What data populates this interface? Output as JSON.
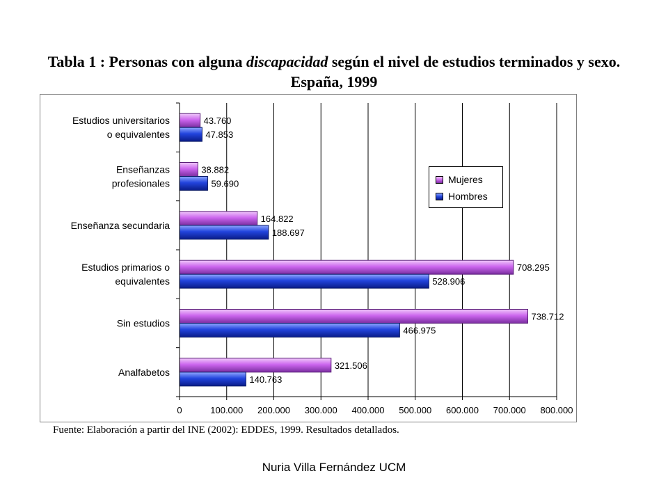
{
  "title": {
    "part1": "Tabla 1 : Personas con alguna ",
    "part2": "discapacidad",
    "part3": " según el nivel de estudios terminados y sexo. España, 1999"
  },
  "source": "Fuente: Elaboración a partir del INE (2002): EDDES, 1999. Resultados detallados.",
  "footer": "Nuria Villa Fernández UCM",
  "colors": {
    "mujeres": "#cc66ee",
    "hombres": "#2244dd"
  },
  "chart_data": {
    "type": "bar",
    "orientation": "horizontal",
    "title": "Tabla 1 : Personas con alguna discapacidad según el nivel de estudios terminados y sexo. España, 1999",
    "categories": [
      [
        "Estudios universitarios",
        "o equivalentes"
      ],
      [
        "Enseñanzas",
        "profesionales"
      ],
      [
        "Enseñanza secundaria"
      ],
      [
        "Estudios primarios o",
        "equivalentes"
      ],
      [
        "Sin estudios"
      ],
      [
        "Analfabetos"
      ]
    ],
    "series": [
      {
        "name": "Mujeres",
        "values": [
          43760,
          38882,
          164822,
          708295,
          738712,
          321506
        ],
        "labels": [
          "43.760",
          "38.882",
          "164.822",
          "708.295",
          "738.712",
          "321.506"
        ]
      },
      {
        "name": "Hombres",
        "values": [
          47853,
          59690,
          188697,
          528906,
          466975,
          140763
        ],
        "labels": [
          "47.853",
          "59.690",
          "188.697",
          "528.906",
          "466.975",
          "140.763"
        ]
      }
    ],
    "xlim": [
      0,
      800000
    ],
    "xticks": [
      0,
      100000,
      200000,
      300000,
      400000,
      500000,
      600000,
      700000,
      800000
    ],
    "xtick_labels": [
      "0",
      "100.000",
      "200.000",
      "300.000",
      "400.000",
      "500.000",
      "600.000",
      "700.000",
      "800.000"
    ],
    "grid": "vertical",
    "legend": "right"
  }
}
